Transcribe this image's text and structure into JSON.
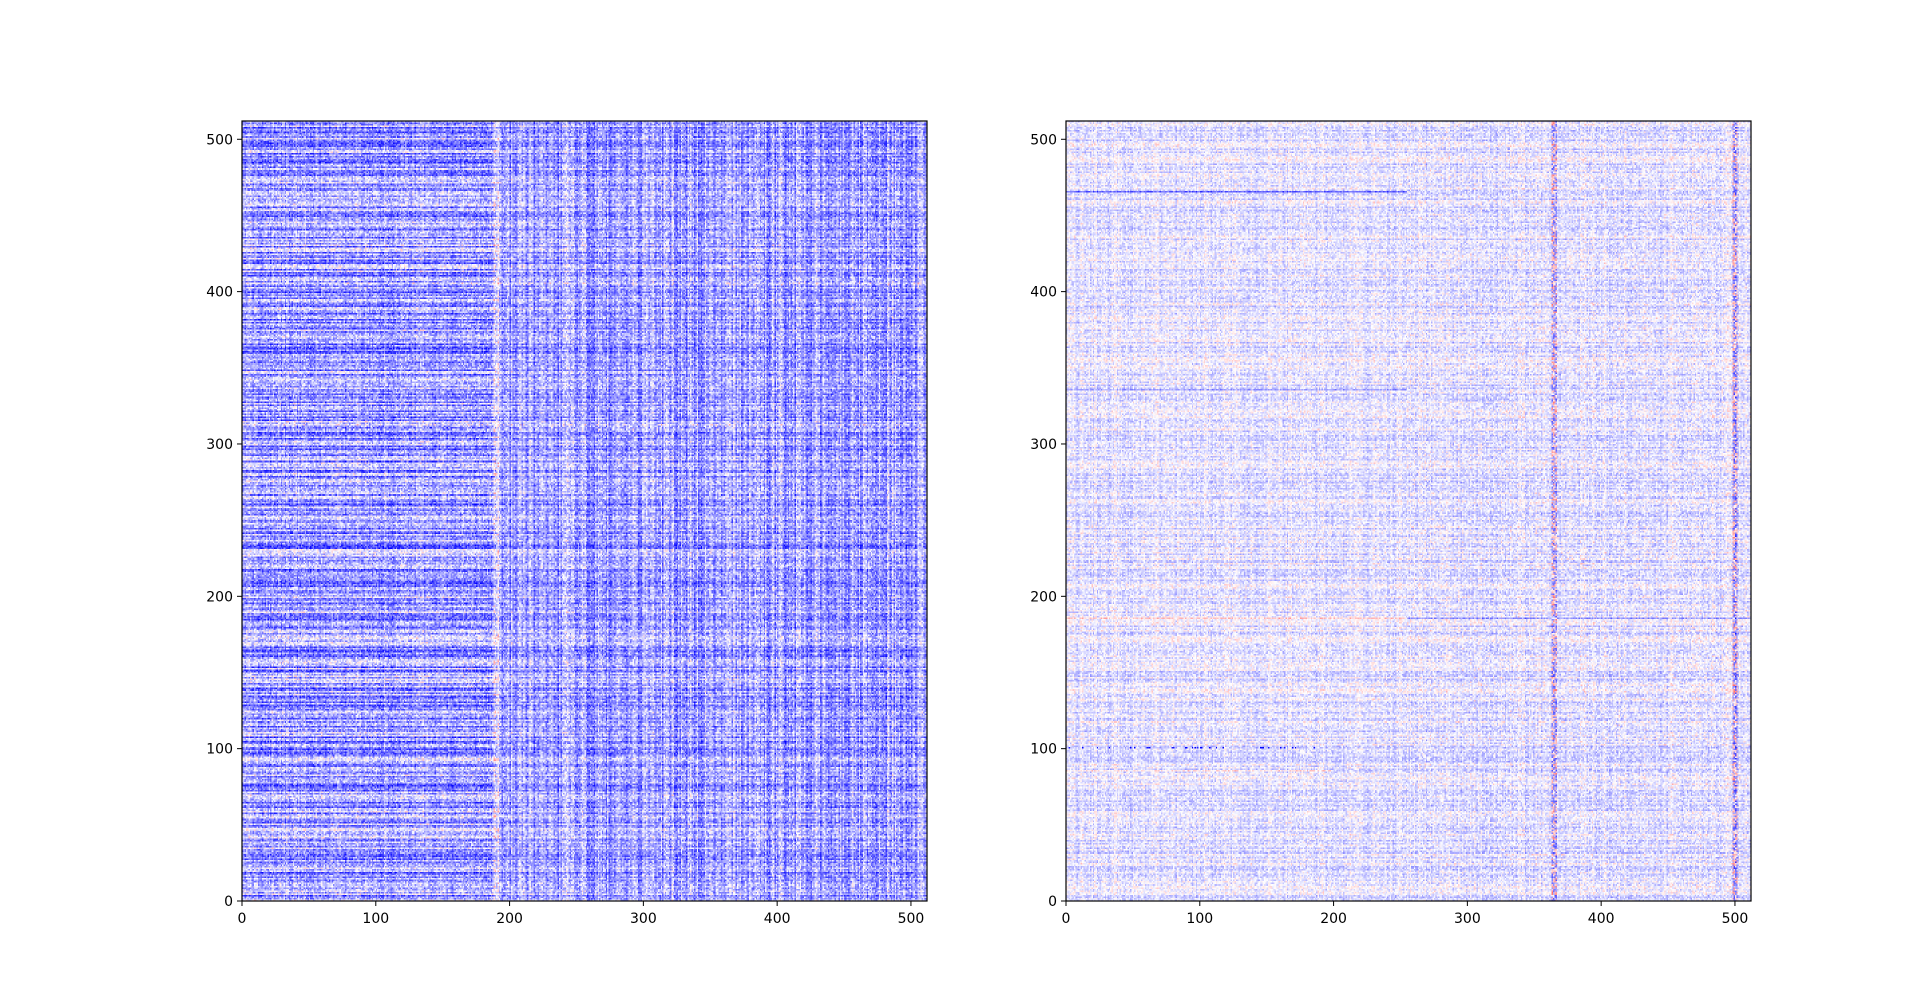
{
  "figure": {
    "background": "#ffffff"
  },
  "chart_data": [
    {
      "type": "heatmap",
      "title": "",
      "xlabel": "",
      "ylabel": "",
      "xlim": [
        0,
        512
      ],
      "ylim": [
        0,
        512
      ],
      "xticks": [
        0,
        100,
        200,
        300,
        400,
        500
      ],
      "yticks": [
        0,
        100,
        200,
        300,
        400,
        500
      ],
      "xtick_labels": [
        "0",
        "100",
        "200",
        "300",
        "400",
        "500"
      ],
      "ytick_labels": [
        "0",
        "100",
        "200",
        "300",
        "400",
        "500"
      ],
      "origin": "lower",
      "grid": false,
      "colormap": "bwr",
      "colors": {
        "negative": "#0000ff",
        "zero": "#ffffff",
        "positive": "#ff0000"
      },
      "matrix_size": [
        512,
        512
      ],
      "overall_tone": "predominantly blue (negative values), dense",
      "notable_features": [
        "horizontal banding strongest for columns 0-190",
        "vertical line near column 190",
        "finer checkerboard-like texture for columns 280-512",
        "faint red streaks near rows 310 and 405"
      ]
    },
    {
      "type": "heatmap",
      "title": "",
      "xlabel": "",
      "ylabel": "",
      "xlim": [
        0,
        512
      ],
      "ylim": [
        0,
        512
      ],
      "xticks": [
        0,
        100,
        200,
        300,
        400,
        500
      ],
      "yticks": [
        0,
        100,
        200,
        300,
        400,
        500
      ],
      "xtick_labels": [
        "0",
        "100",
        "200",
        "300",
        "400",
        "500"
      ],
      "ytick_labels": [
        "0",
        "100",
        "200",
        "300",
        "400",
        "500"
      ],
      "origin": "lower",
      "grid": false,
      "colormap": "bwr",
      "colors": {
        "negative": "#0000ff",
        "zero": "#ffffff",
        "positive": "#ff0000"
      },
      "matrix_size": [
        512,
        512
      ],
      "overall_tone": "mostly near zero (pale), sparse blue and red",
      "notable_features": [
        "horizontal lines near rows 465, 335, 185 and 85",
        "vertical lines near columns 365 and 500",
        "texture change near column 255",
        "red dashes near row 185 and row 85"
      ]
    }
  ]
}
